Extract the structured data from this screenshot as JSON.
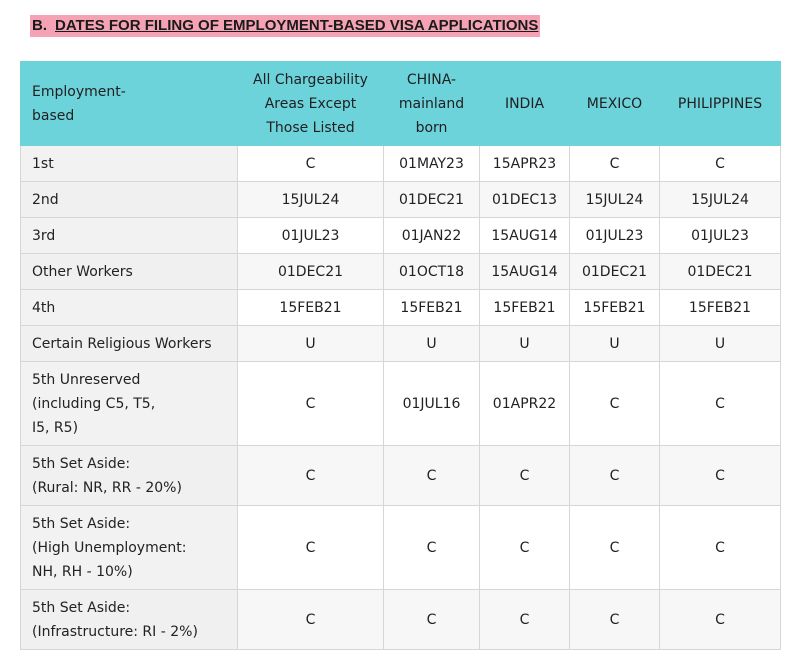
{
  "section": {
    "prefix": "B.",
    "title": "DATES FOR FILING OF EMPLOYMENT-BASED VISA APPLICATIONS",
    "highlight_color": "#f5a3b4"
  },
  "table": {
    "header_color": "#6dd3db",
    "headers": [
      "Employment-\nbased",
      "All Chargeability\nAreas Except\nThose Listed",
      "CHINA-\nmainland\nborn",
      "INDIA",
      "MEXICO",
      "PHILIPPINES"
    ],
    "rows": [
      {
        "label": "1st",
        "values": [
          "C",
          "01MAY23",
          "15APR23",
          "C",
          "C"
        ]
      },
      {
        "label": "2nd",
        "values": [
          "15JUL24",
          "01DEC21",
          "01DEC13",
          "15JUL24",
          "15JUL24"
        ]
      },
      {
        "label": "3rd",
        "values": [
          "01JUL23",
          "01JAN22",
          "15AUG14",
          "01JUL23",
          "01JUL23"
        ]
      },
      {
        "label": "Other Workers",
        "values": [
          "01DEC21",
          "01OCT18",
          "15AUG14",
          "01DEC21",
          "01DEC21"
        ]
      },
      {
        "label": "4th",
        "values": [
          "15FEB21",
          "15FEB21",
          "15FEB21",
          "15FEB21",
          "15FEB21"
        ]
      },
      {
        "label": "Certain Religious Workers",
        "values": [
          "U",
          "U",
          "U",
          "U",
          "U"
        ]
      },
      {
        "label": "5th Unreserved\n(including C5, T5,\nI5, R5)",
        "values": [
          "C",
          "01JUL16",
          "01APR22",
          "C",
          "C"
        ]
      },
      {
        "label": "5th Set Aside:\n(Rural: NR, RR - 20%)",
        "values": [
          "C",
          "C",
          "C",
          "C",
          "C"
        ]
      },
      {
        "label": "5th Set Aside:\n(High Unemployment:\nNH, RH - 10%)",
        "values": [
          "C",
          "C",
          "C",
          "C",
          "C"
        ]
      },
      {
        "label": "5th Set Aside:\n(Infrastructure: RI - 2%)",
        "values": [
          "C",
          "C",
          "C",
          "C",
          "C"
        ]
      }
    ]
  }
}
